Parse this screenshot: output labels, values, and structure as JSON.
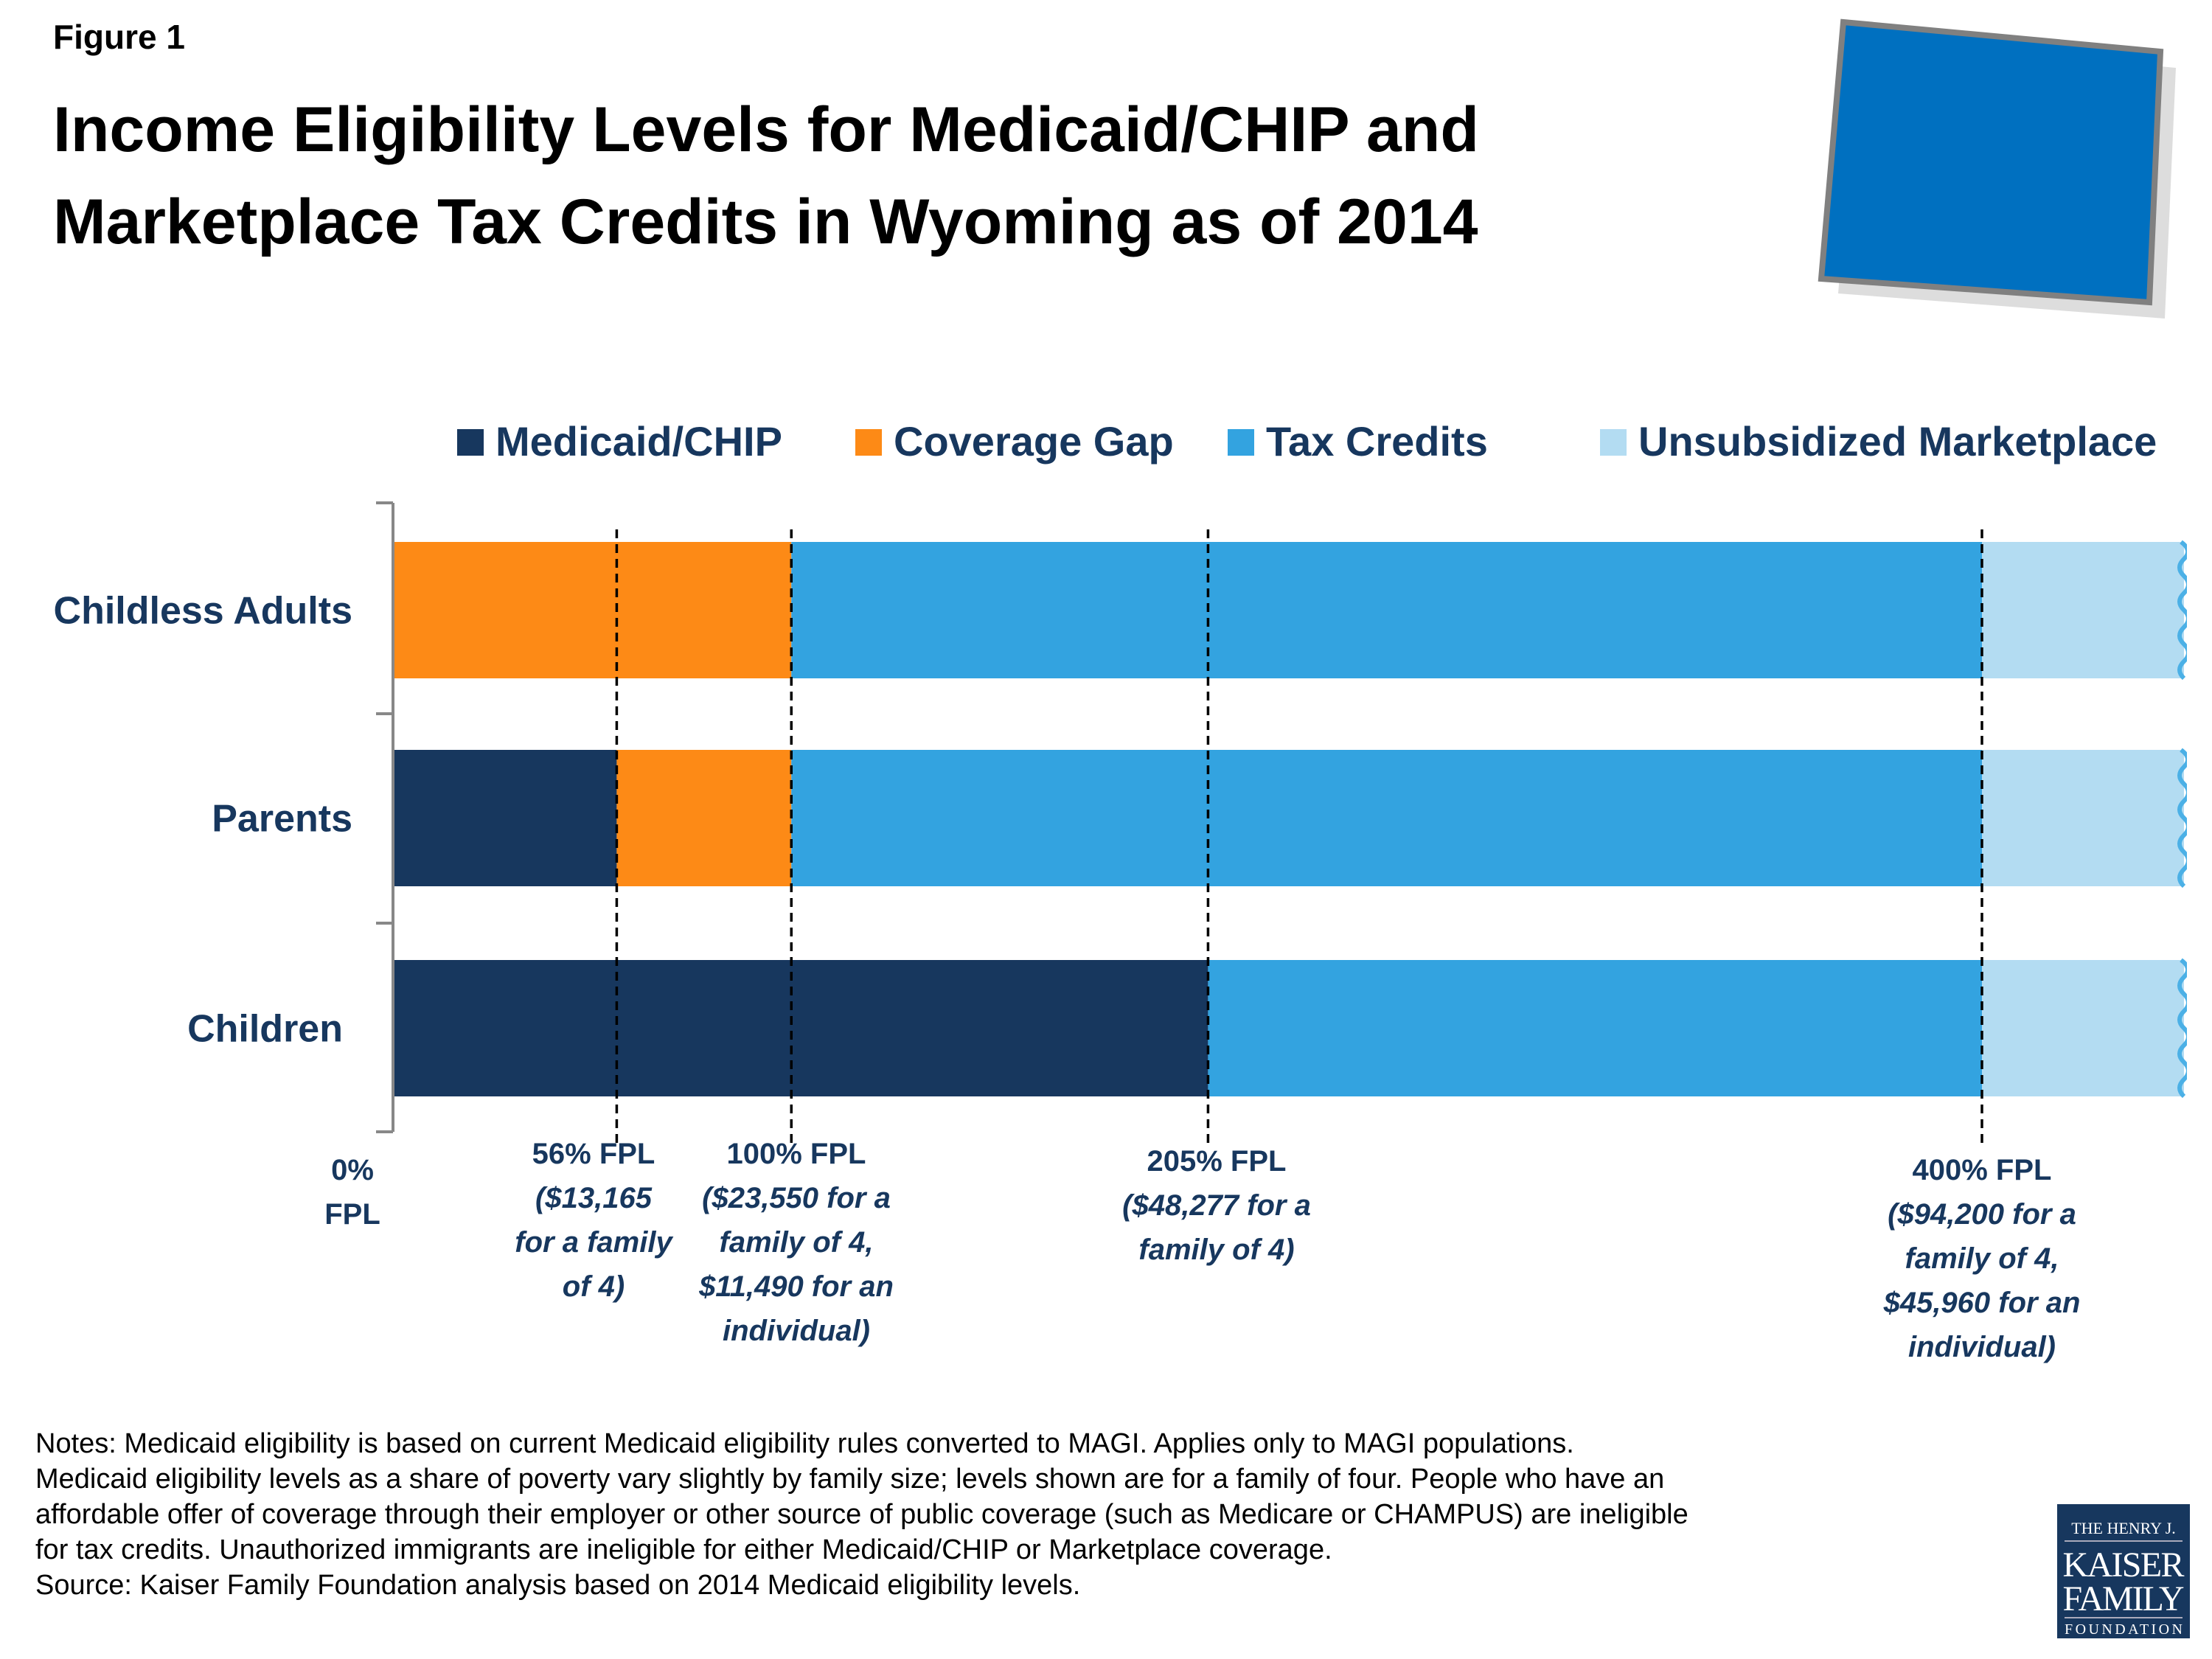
{
  "figure_label": "Figure 1",
  "title_lines": [
    "Income Eligibility Levels for Medicaid/CHIP and",
    "Marketplace Tax Credits in Wyoming as of 2014"
  ],
  "state_icon": "wyoming-state-shape",
  "colors": {
    "medicaid": "#17375e",
    "gap": "#fd8a16",
    "tax": "#33a3e0",
    "unsub": "#b3dcf2",
    "state": "#0070c0"
  },
  "chart_data": {
    "type": "bar",
    "orientation": "horizontal-stacked",
    "unit": "% FPL",
    "xlim": [
      0,
      450
    ],
    "axis_break": "wavy-right-edge",
    "legend_position": "top",
    "legend": [
      "Medicaid/CHIP",
      "Coverage Gap",
      "Tax Credits",
      "Unsubsidized Marketplace"
    ],
    "categories": [
      "Childless Adults",
      "Parents",
      "Children"
    ],
    "series": [
      {
        "name": "Medicaid/CHIP",
        "ranges": [
          [
            0,
            0
          ],
          [
            0,
            56
          ],
          [
            0,
            205
          ]
        ]
      },
      {
        "name": "Coverage Gap",
        "ranges": [
          [
            0,
            100
          ],
          [
            56,
            100
          ],
          [
            0,
            0
          ]
        ]
      },
      {
        "name": "Tax Credits",
        "ranges": [
          [
            100,
            400
          ],
          [
            100,
            400
          ],
          [
            205,
            400
          ]
        ]
      },
      {
        "name": "Unsubsidized Marketplace",
        "ranges": [
          [
            400,
            450
          ],
          [
            400,
            450
          ],
          [
            400,
            450
          ]
        ]
      }
    ],
    "thresholds": [
      {
        "value": 0,
        "dashed": false,
        "lines": [
          "0%",
          "FPL"
        ]
      },
      {
        "value": 56,
        "dashed": true,
        "lines": [
          "56% FPL",
          "($13,165",
          "for a family",
          "of 4)"
        ]
      },
      {
        "value": 100,
        "dashed": true,
        "lines": [
          "100% FPL",
          "($23,550 for a",
          "family of 4,",
          "$11,490 for an",
          "individual)"
        ]
      },
      {
        "value": 205,
        "dashed": true,
        "lines": [
          "205% FPL",
          "($48,277 for a",
          "family of 4)"
        ]
      },
      {
        "value": 400,
        "dashed": true,
        "lines": [
          "400% FPL",
          "($94,200 for a",
          "family of 4,",
          "$45,960 for an",
          "individual)"
        ]
      }
    ]
  },
  "notes": [
    "Notes: Medicaid eligibility is based on current Medicaid eligibility rules converted to MAGI. Applies only to MAGI populations.",
    "Medicaid eligibility levels as a share of poverty vary slightly by family size; levels shown are for a family of four. People who have an",
    "affordable offer of coverage through their employer or other source of public coverage (such as Medicare or CHAMPUS) are ineligible",
    "for tax credits. Unauthorized immigrants are ineligible for either Medicaid/CHIP or Marketplace coverage.",
    "Source: Kaiser Family Foundation analysis based on 2014 Medicaid eligibility levels."
  ],
  "logo": {
    "lines": [
      "THE HENRY J.",
      "KAISER",
      "FAMILY",
      "FOUNDATION"
    ]
  }
}
